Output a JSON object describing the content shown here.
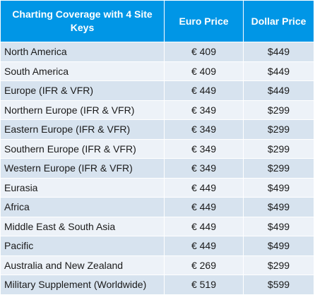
{
  "header": {
    "coverage": "Charting Coverage with 4 Site Keys",
    "euro": "Euro Price",
    "dollar": "Dollar Price"
  },
  "rows": [
    {
      "region": "North America",
      "euro": "€ 409",
      "dollar": "$449"
    },
    {
      "region": "South America",
      "euro": "€ 409",
      "dollar": "$449"
    },
    {
      "region": "Europe (IFR & VFR)",
      "euro": "€ 449",
      "dollar": "$449"
    },
    {
      "region": "Northern Europe (IFR & VFR)",
      "euro": "€ 349",
      "dollar": "$299"
    },
    {
      "region": "Eastern Europe (IFR & VFR)",
      "euro": "€ 349",
      "dollar": "$299"
    },
    {
      "region": "Southern Europe (IFR & VFR)",
      "euro": "€ 349",
      "dollar": "$299"
    },
    {
      "region": "Western Europe (IFR & VFR)",
      "euro": "€ 349",
      "dollar": "$299"
    },
    {
      "region": "Eurasia",
      "euro": "€ 449",
      "dollar": "$499"
    },
    {
      "region": "Africa",
      "euro": "€ 449",
      "dollar": "$499"
    },
    {
      "region": "Middle East & South Asia",
      "euro": "€ 449",
      "dollar": "$499"
    },
    {
      "region": "Pacific",
      "euro": "€ 449",
      "dollar": "$499"
    },
    {
      "region": "Australia and New Zealand",
      "euro": "€ 269",
      "dollar": "$299"
    },
    {
      "region": "Military Supplement (Worldwide)",
      "euro": "€ 519",
      "dollar": "$599"
    }
  ],
  "colors": {
    "header_bg": "#0096e6",
    "row_odd": "#d7e3ef",
    "row_even": "#edf2f8"
  }
}
